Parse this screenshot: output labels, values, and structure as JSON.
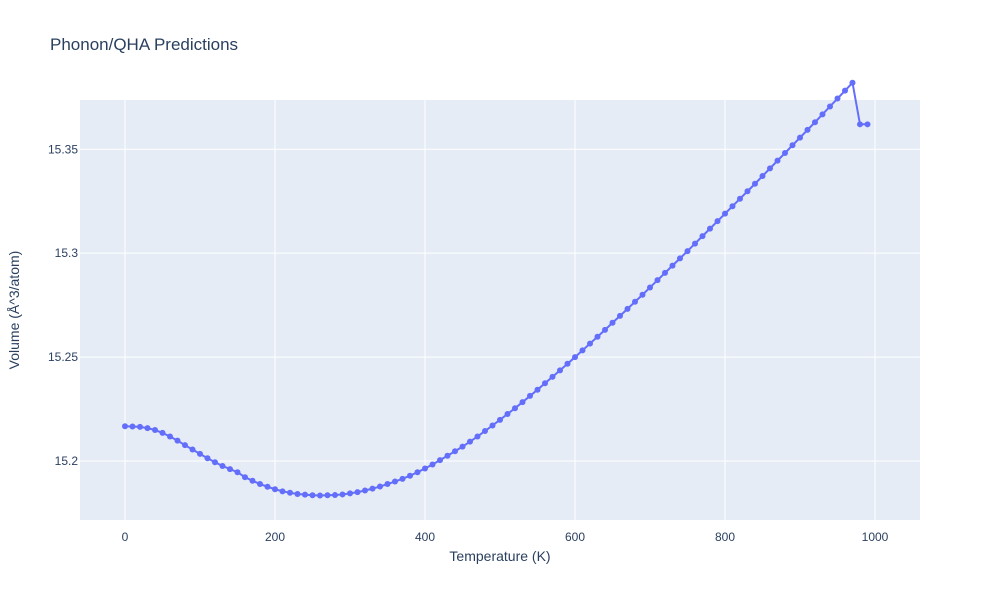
{
  "chart_data": {
    "type": "line",
    "mode": "lines+markers",
    "title": "Phonon/QHA Predictions",
    "xlabel": "Temperature (K)",
    "ylabel": "Volume (Å^3/atom)",
    "xlim": [
      -60,
      1060
    ],
    "ylim": [
      15.1716,
      15.3737
    ],
    "xticks": [
      0,
      200,
      400,
      600,
      800,
      1000
    ],
    "xtick_labels": [
      "0",
      "200",
      "400",
      "600",
      "800",
      "1000"
    ],
    "yticks": [
      15.2,
      15.25,
      15.3,
      15.35
    ],
    "ytick_labels": [
      "15.2",
      "15.25",
      "15.3",
      "15.35"
    ],
    "grid": true,
    "background": "#e5ecf6",
    "series_color": "#636efa",
    "series": [
      {
        "x": [
          0,
          10,
          20,
          30,
          40,
          50,
          60,
          70,
          80,
          90,
          100,
          110,
          120,
          130,
          140,
          150,
          160,
          170,
          180,
          190,
          200,
          210,
          220,
          230,
          240,
          250,
          260,
          270,
          280,
          290,
          300,
          310,
          320,
          330,
          340,
          350,
          360,
          370,
          380,
          390,
          400,
          410,
          420,
          430,
          440,
          450,
          460,
          470,
          480,
          490,
          500,
          510,
          520,
          530,
          540,
          550,
          560,
          570,
          580,
          590,
          600,
          610,
          620,
          630,
          640,
          650,
          660,
          670,
          680,
          690,
          700,
          710,
          720,
          730,
          740,
          750,
          760,
          770,
          780,
          790,
          800,
          810,
          820,
          830,
          840,
          850,
          860,
          870,
          880,
          890,
          900,
          910,
          920,
          930,
          940,
          950,
          960,
          970,
          980,
          990
        ],
        "y": [
          15.2167,
          15.2166,
          15.2164,
          15.2158,
          15.2149,
          15.2135,
          15.2118,
          15.2098,
          15.2076,
          15.2055,
          15.2034,
          15.2013,
          15.1994,
          15.1976,
          15.1961,
          15.1946,
          15.1922,
          15.1905,
          15.1889,
          15.1876,
          15.1864,
          15.1854,
          15.1847,
          15.1841,
          15.1838,
          15.1835,
          15.1834,
          15.1835,
          15.1836,
          15.1839,
          15.1844,
          15.185,
          15.1858,
          15.1867,
          15.1877,
          15.1889,
          15.1901,
          15.1914,
          15.1929,
          15.1946,
          15.1964,
          15.1983,
          15.2004,
          15.2025,
          15.2047,
          15.2069,
          15.2093,
          15.2118,
          15.2144,
          15.2171,
          15.2198,
          15.2226,
          15.2254,
          15.2283,
          15.2313,
          15.2343,
          15.2374,
          15.2405,
          15.2436,
          15.2468,
          15.25,
          15.2532,
          15.2565,
          15.2598,
          15.2631,
          15.2665,
          15.2698,
          15.2732,
          15.2766,
          15.28,
          15.2835,
          15.287,
          15.2905,
          15.294,
          15.2975,
          15.301,
          15.3046,
          15.3082,
          15.3118,
          15.3154,
          15.319,
          15.3226,
          15.3262,
          15.3298,
          15.3334,
          15.3371,
          15.3408,
          15.3445,
          15.3482,
          15.3519,
          15.3556,
          15.3593,
          15.363,
          15.3668,
          15.3706,
          15.3744,
          15.3782,
          15.382,
          15.362,
          15.362
        ]
      }
    ]
  }
}
